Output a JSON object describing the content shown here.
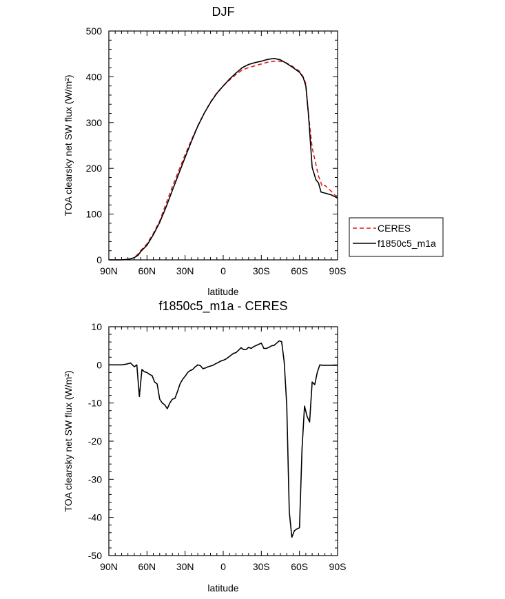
{
  "chart_data": [
    {
      "type": "line",
      "title": "DJF",
      "xlabel": "latitude",
      "ylabel": "TOA clearsky net SW flux (W/m²)",
      "xlim": [
        90,
        -90
      ],
      "ylim": [
        0,
        500
      ],
      "xticks": [
        90,
        60,
        30,
        0,
        -30,
        -60,
        -90
      ],
      "xtick_labels": [
        "90N",
        "60N",
        "30N",
        "0",
        "30S",
        "60S",
        "90S"
      ],
      "yticks": [
        0,
        100,
        200,
        300,
        400,
        500
      ],
      "ytick_labels": [
        "0",
        "100",
        "200",
        "300",
        "400",
        "500"
      ],
      "legend_placement": "right, outside plot",
      "series": [
        {
          "name": "CERES",
          "color": "#e41a1c",
          "dash": true,
          "x": [
            90,
            85,
            80,
            75,
            72,
            70,
            67,
            65,
            60,
            55,
            50,
            45,
            40,
            35,
            30,
            25,
            20,
            15,
            10,
            5,
            0,
            -5,
            -10,
            -15,
            -20,
            -25,
            -30,
            -35,
            -40,
            -45,
            -50,
            -55,
            -60,
            -63,
            -65,
            -67,
            -70,
            -75,
            -78,
            -80,
            -85,
            -90
          ],
          "y": [
            0,
            0,
            0,
            1,
            3,
            5,
            13,
            20,
            35,
            58,
            85,
            123,
            160,
            195,
            230,
            262,
            293,
            320,
            345,
            365,
            380,
            393,
            405,
            415,
            420,
            424,
            428,
            432,
            434,
            434,
            430,
            422,
            412,
            400,
            385,
            320,
            245,
            183,
            160,
            163,
            150,
            135
          ]
        },
        {
          "name": "f1850c5_m1a",
          "color": "#000000",
          "dash": false,
          "x": [
            90,
            85,
            80,
            75,
            72,
            70,
            67,
            65,
            60,
            55,
            50,
            45,
            40,
            35,
            30,
            25,
            20,
            15,
            10,
            5,
            0,
            -5,
            -10,
            -15,
            -20,
            -25,
            -30,
            -35,
            -40,
            -45,
            -50,
            -55,
            -60,
            -63,
            -65,
            -67,
            -70,
            -73,
            -75,
            -77,
            -80,
            -85,
            -90
          ],
          "y": [
            0,
            0,
            0,
            1,
            3,
            5,
            10,
            18,
            32,
            55,
            82,
            115,
            152,
            188,
            224,
            259,
            292,
            320,
            344,
            364,
            380,
            395,
            408,
            420,
            427,
            431,
            434,
            438,
            440,
            437,
            429,
            420,
            410,
            398,
            380,
            320,
            202,
            175,
            168,
            148,
            146,
            142,
            135
          ]
        }
      ]
    },
    {
      "type": "line",
      "title": "f1850c5_m1a - CERES",
      "xlabel": "latitude",
      "ylabel": "TOA clearsky net SW flux (W/m²)",
      "xlim": [
        90,
        -90
      ],
      "ylim": [
        -50,
        10
      ],
      "xticks": [
        90,
        60,
        30,
        0,
        -30,
        -60,
        -90
      ],
      "xtick_labels": [
        "90N",
        "60N",
        "30N",
        "0",
        "30S",
        "60S",
        "90S"
      ],
      "yticks": [
        10,
        0,
        -10,
        -20,
        -30,
        -40,
        -50
      ],
      "ytick_labels": [
        "10",
        "0",
        "-10",
        "-20",
        "-30",
        "-40",
        "-50"
      ],
      "series": [
        {
          "name": "f1850c5_m1a - CERES",
          "color": "#000000",
          "dash": false,
          "x": [
            90,
            85,
            80,
            76,
            73,
            70,
            68,
            66,
            64,
            62,
            60,
            58,
            56,
            54,
            52,
            50,
            48,
            46,
            44,
            42,
            40,
            38,
            36,
            34,
            32,
            30,
            28,
            26,
            24,
            22,
            20,
            18,
            16,
            14,
            12,
            10,
            8,
            6,
            4,
            2,
            0,
            -2,
            -4,
            -6,
            -8,
            -10,
            -12,
            -14,
            -16,
            -18,
            -20,
            -22,
            -24,
            -26,
            -28,
            -30,
            -32,
            -34,
            -36,
            -38,
            -40,
            -42,
            -44,
            -46,
            -48,
            -50,
            -52,
            -54,
            -56,
            -58,
            -60,
            -62,
            -64,
            -66,
            -68,
            -70,
            -72,
            -74,
            -76,
            -78,
            -80,
            -82,
            -84,
            -86,
            -88,
            -90
          ],
          "y": [
            0,
            0,
            0,
            0.2,
            0.5,
            -0.5,
            0,
            -8.3,
            -1.2,
            -1.8,
            -2,
            -2.5,
            -2.8,
            -4.5,
            -5,
            -9,
            -10,
            -10.5,
            -11.5,
            -10,
            -9,
            -8.8,
            -7,
            -5,
            -3.8,
            -3,
            -2,
            -1.5,
            -1.2,
            -0.5,
            0,
            -0.2,
            -1,
            -0.8,
            -0.5,
            -0.3,
            -0.1,
            0.3,
            0.6,
            1,
            1.2,
            1.5,
            2,
            2.5,
            3,
            3.2,
            3.8,
            4.5,
            4,
            4,
            4.6,
            4.3,
            4.8,
            5.1,
            5.4,
            5.7,
            4.3,
            4.3,
            4.6,
            5,
            5.1,
            5.7,
            6.3,
            6.1,
            0.8,
            -10.5,
            -38.5,
            -45.2,
            -43.5,
            -43,
            -42.7,
            -22,
            -10.8,
            -13.5,
            -15,
            -4.5,
            -5.2,
            -2,
            0,
            -0.1,
            -0.1,
            -0.1,
            -0.1,
            -0.1,
            -0.1,
            -0.1
          ]
        }
      ]
    }
  ]
}
